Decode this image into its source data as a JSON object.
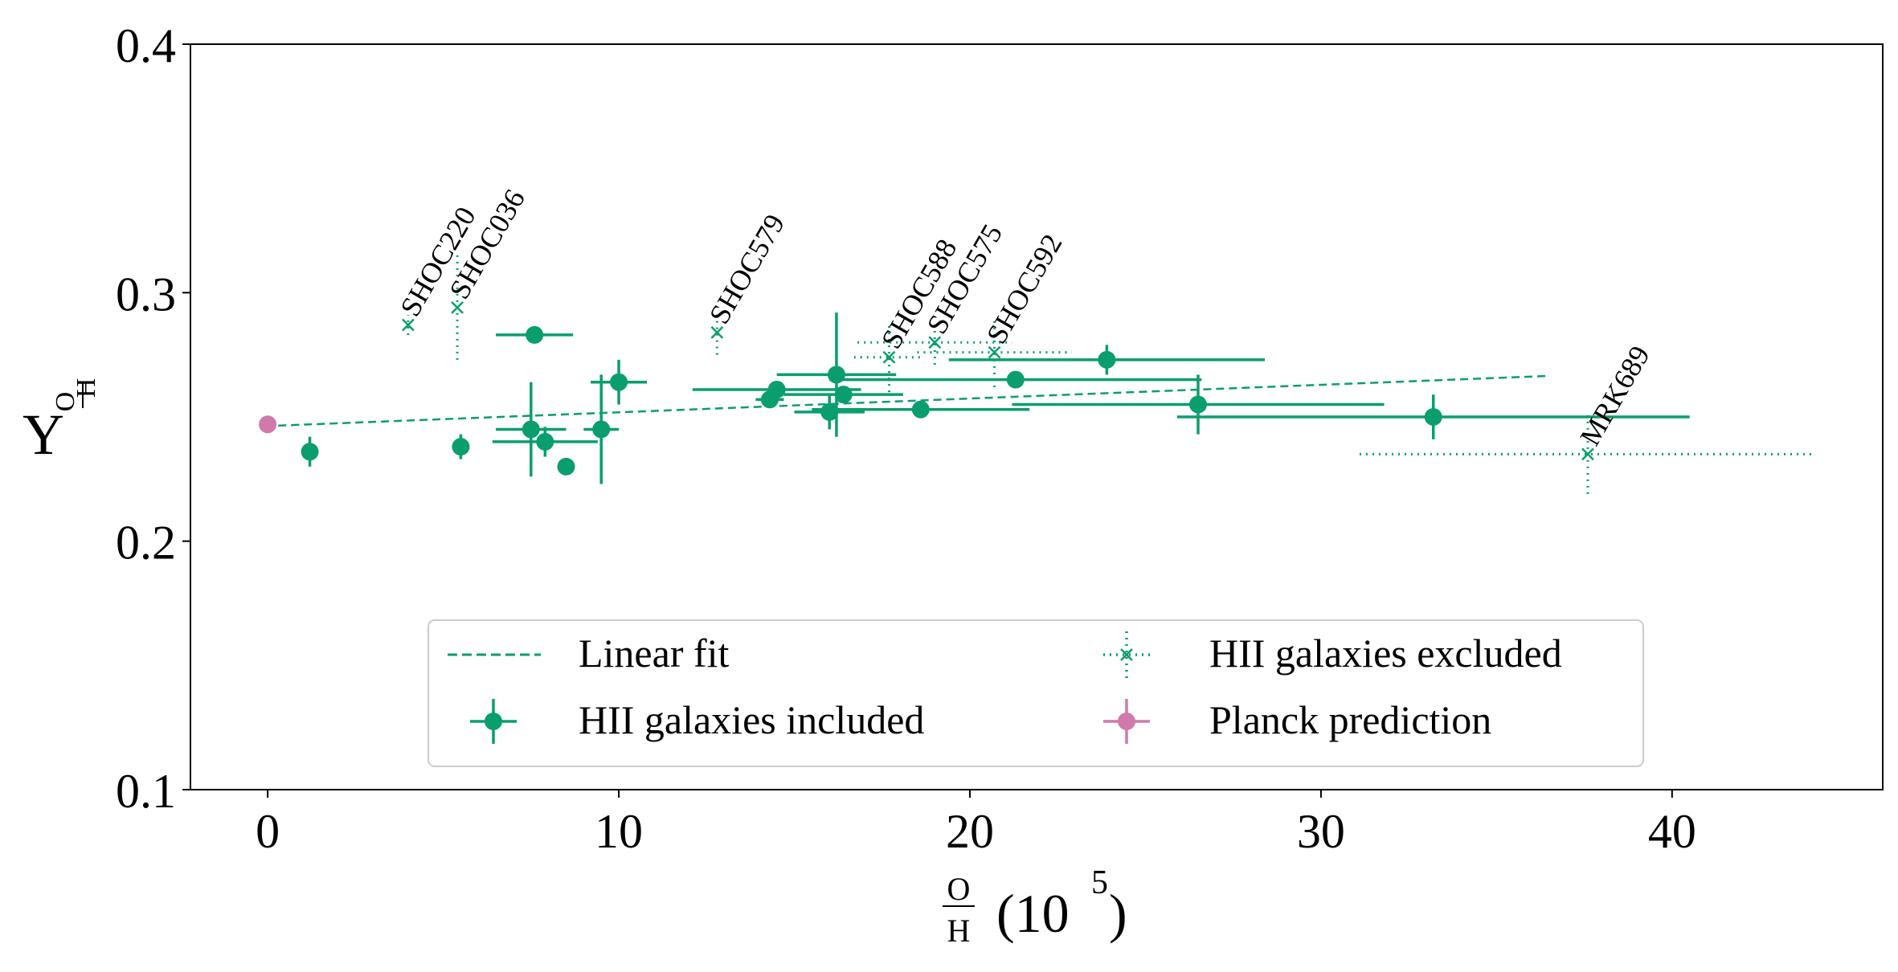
{
  "colors": {
    "included": "#0a9e6e",
    "excluded": "#0a9e6e",
    "planck": "#d179ab",
    "axis": "#000000"
  },
  "chart_data": {
    "type": "scatter",
    "xlabel_num": "O",
    "xlabel_den": "H",
    "xlabel_unit": "(10",
    "xlabel_exp": "5",
    "xlabel_close": ")",
    "ylabel_main": "Y",
    "ylabel_num": "O",
    "ylabel_den": "H",
    "xlim": [
      -2.2,
      46.0
    ],
    "ylim": [
      0.1,
      0.4
    ],
    "xticks": [
      0,
      10,
      20,
      30,
      40
    ],
    "xtick_labels": [
      "0",
      "10",
      "20",
      "30",
      "40"
    ],
    "yticks": [
      0.1,
      0.2,
      0.3,
      0.4
    ],
    "ytick_labels": [
      "0.1",
      "0.2",
      "0.3",
      "0.4"
    ],
    "linear_fit": {
      "x": [
        0.3,
        36.5
      ],
      "y": [
        0.2465,
        0.2665
      ]
    },
    "included": [
      {
        "x": 1.2,
        "y": 0.236,
        "xerr": 0,
        "yerr": 0.006
      },
      {
        "x": 5.5,
        "y": 0.238,
        "xerr": 0,
        "yerr": 0.005
      },
      {
        "x": 7.5,
        "y": 0.245,
        "xerr": 1.0,
        "yerr": 0.019
      },
      {
        "x": 7.6,
        "y": 0.283,
        "xerr": 1.1,
        "yerr": 0.0
      },
      {
        "x": 7.9,
        "y": 0.24,
        "xerr": 1.5,
        "yerr": 0.006
      },
      {
        "x": 8.5,
        "y": 0.23,
        "xerr": 0,
        "yerr": 0.0
      },
      {
        "x": 9.5,
        "y": 0.245,
        "xerr": 0.5,
        "yerr": 0.022
      },
      {
        "x": 10.0,
        "y": 0.264,
        "xerr": 0.8,
        "yerr": 0.009
      },
      {
        "x": 14.3,
        "y": 0.257,
        "xerr": 0.4,
        "yerr": 0.0
      },
      {
        "x": 14.5,
        "y": 0.261,
        "xerr": 2.4,
        "yerr": 0.0
      },
      {
        "x": 16.0,
        "y": 0.252,
        "xerr": 1.0,
        "yerr": 0.007
      },
      {
        "x": 16.2,
        "y": 0.267,
        "xerr": 1.7,
        "yerr": 0.025
      },
      {
        "x": 16.4,
        "y": 0.259,
        "xerr": 1.7,
        "yerr": 0.0
      },
      {
        "x": 18.6,
        "y": 0.253,
        "xerr": 3.1,
        "yerr": 0.0
      },
      {
        "x": 21.3,
        "y": 0.265,
        "xerr": 5.3,
        "yerr": 0.0
      },
      {
        "x": 23.9,
        "y": 0.273,
        "xerr": 4.5,
        "yerr": 0.006
      },
      {
        "x": 26.5,
        "y": 0.255,
        "xerr": 5.3,
        "yerr": 0.012
      },
      {
        "x": 33.2,
        "y": 0.25,
        "xerr": 7.3,
        "yerr": 0.009
      }
    ],
    "excluded": [
      {
        "label": "SHOC220",
        "x": 4.0,
        "y": 0.287,
        "xerr": 0,
        "yerr": 0.004
      },
      {
        "label": "SHOC036",
        "x": 5.4,
        "y": 0.294,
        "xerr": 0,
        "yerr": 0.021
      },
      {
        "label": "SHOC579",
        "x": 12.8,
        "y": 0.284,
        "xerr": 0,
        "yerr": 0.009
      },
      {
        "label": "SHOC588",
        "x": 17.7,
        "y": 0.274,
        "xerr": 1.0,
        "yerr": 0.014
      },
      {
        "label": "SHOC575",
        "x": 19.0,
        "y": 0.28,
        "xerr": 2.2,
        "yerr": 0.009
      },
      {
        "label": "SHOC592",
        "x": 20.7,
        "y": 0.276,
        "xerr": 2.2,
        "yerr": 0.014
      },
      {
        "label": "MRK689",
        "x": 37.6,
        "y": 0.235,
        "xerr": 6.5,
        "yerr": 0.016
      }
    ],
    "planck": {
      "x": 0.0,
      "y": 0.247
    },
    "legend": {
      "position": "lower-center",
      "entries": [
        "Linear fit",
        "HII galaxies included",
        "HII galaxies excluded",
        "Planck prediction"
      ]
    }
  }
}
